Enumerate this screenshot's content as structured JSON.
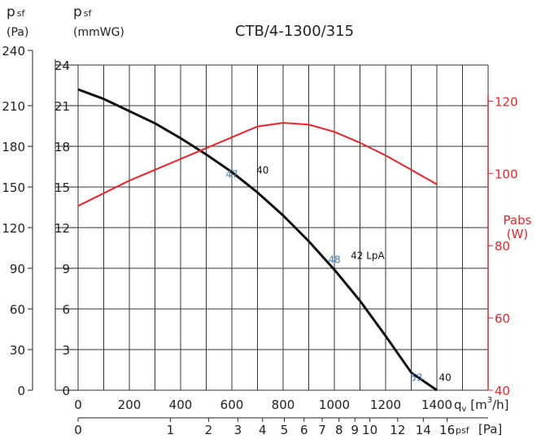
{
  "chart_data": {
    "type": "line",
    "title": "CTB/4-1300/315",
    "left_axis": {
      "label_main": "p",
      "label_sub": "sf",
      "unit": "(Pa)",
      "range": [
        0,
        240
      ],
      "ticks": [
        "0",
        "30",
        "60",
        "90",
        "120",
        "150",
        "180",
        "210",
        "240"
      ]
    },
    "inner_left_axis": {
      "label_main": "p",
      "label_sub": "sf",
      "unit": "(mmWG)",
      "range": [
        0,
        24
      ],
      "ticks": [
        "0",
        "3",
        "6",
        "9",
        "12",
        "15",
        "18",
        "21",
        "24"
      ]
    },
    "right_axis": {
      "label": "Pabs",
      "unit": "(W)",
      "range": [
        40,
        125
      ],
      "ticks": [
        "40",
        "60",
        "80",
        "100",
        "120"
      ],
      "color": "#e8242a"
    },
    "x_axis": {
      "label": "qv [m³/h]",
      "label_pre": "q",
      "label_sub": "v",
      "label_post": " [m",
      "label_sup": "3",
      "label_end": "/h]",
      "range": [
        0,
        1400
      ],
      "ticks": [
        "0",
        "200",
        "400",
        "600",
        "800",
        "1000",
        "1200",
        "1400"
      ]
    },
    "velocity_axis": {
      "label_sub": "psf",
      "label_unit": "[Pa]",
      "ticks": [
        "0",
        "1",
        "2",
        "3",
        "4",
        "5",
        "6",
        "7",
        "8",
        "9",
        "10",
        "12",
        "14",
        "16"
      ]
    },
    "series": [
      {
        "role": "pressure",
        "color": "#111111",
        "axis": "left",
        "x": [
          0,
          100,
          200,
          300,
          400,
          500,
          600,
          700,
          800,
          900,
          1000,
          1100,
          1200,
          1300,
          1400
        ],
        "y": [
          222,
          215,
          206,
          197,
          186,
          174,
          161,
          146,
          129,
          110,
          89,
          66,
          40,
          13,
          0
        ]
      },
      {
        "role": "absorbed power",
        "color": "#e8242a",
        "axis": "right",
        "x": [
          0,
          200,
          400,
          600,
          700,
          800,
          900,
          1000,
          1100,
          1200,
          1300,
          1400
        ],
        "y": [
          91,
          98,
          104,
          110,
          113,
          114,
          113.5,
          111.5,
          108.5,
          105,
          101,
          97
        ]
      }
    ],
    "annotations": [
      {
        "text": "47",
        "x": 600,
        "y": 157,
        "color": "#3a7fc1"
      },
      {
        "text": "40",
        "x": 720,
        "y": 160,
        "color": "#111111"
      },
      {
        "text": "48",
        "x": 1000,
        "y": 94,
        "color": "#3a7fc1"
      },
      {
        "text": "42 LpA",
        "x": 1130,
        "y": 97,
        "color": "#111111"
      },
      {
        "text": "53",
        "x": 1320,
        "y": 7,
        "color": "#3a7fc1"
      },
      {
        "text": "40",
        "x": 1432,
        "y": 7,
        "color": "#111111"
      }
    ],
    "grid": true
  }
}
